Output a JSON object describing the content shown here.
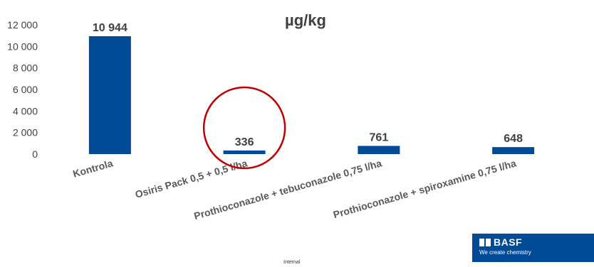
{
  "chart_data": {
    "type": "bar",
    "title": "µg/kg",
    "categories": [
      "Kontrola",
      "Osiris Pack 0,5 + 0,5 l/ha",
      "Prothioconazole + tebuconazole 0,75 l/ha",
      "Prothioconazole + spiroxamine 0,75 l/ha"
    ],
    "values": [
      10944,
      336,
      761,
      648
    ],
    "data_labels": [
      "10 944",
      "336",
      "761",
      "648"
    ],
    "yticks": [
      0,
      2000,
      4000,
      6000,
      8000,
      10000,
      12000
    ],
    "ytick_labels": [
      "0",
      "2 000",
      "4 000",
      "6 000",
      "8 000",
      "10 000",
      "12 000"
    ],
    "ylim": [
      0,
      12000
    ],
    "grid": false,
    "legend": "none",
    "bar_color": "#004a96",
    "highlight_color": "#c00000",
    "highlighted_category": "Osiris Pack 0,5 + 0,5 l/ha"
  },
  "footer": {
    "classification": "Internal"
  },
  "logo": {
    "name": "BASF",
    "tagline": "We create chemistry",
    "color": "#004a96"
  }
}
